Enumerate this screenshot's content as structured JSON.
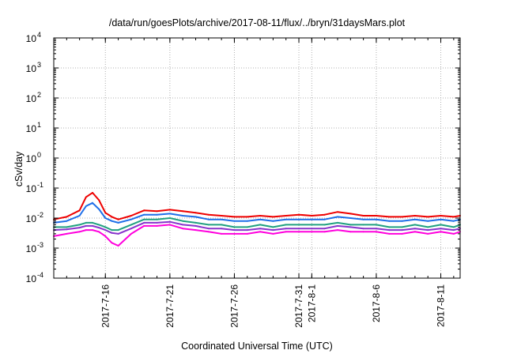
{
  "chart_data": {
    "type": "line",
    "title": "/data/run/goesPlots/archive/2017-08-11/flux/../bryn/31daysMars.plot",
    "xlabel": "Coordinated Universal Time (UTC)",
    "ylabel": "cSv/day",
    "yscale": "log",
    "ylim": [
      0.0001,
      10000
    ],
    "xlim": [
      "2017-07-12",
      "2017-08-12T12:00"
    ],
    "grid": true,
    "y_ticks": [
      {
        "base": "10",
        "exp": "-4"
      },
      {
        "base": "10",
        "exp": "-3"
      },
      {
        "base": "10",
        "exp": "-2"
      },
      {
        "base": "10",
        "exp": "-1"
      },
      {
        "base": "10",
        "exp": "0"
      },
      {
        "base": "10",
        "exp": "1"
      },
      {
        "base": "10",
        "exp": "2"
      },
      {
        "base": "10",
        "exp": "3"
      },
      {
        "base": "10",
        "exp": "4"
      }
    ],
    "x_ticks": [
      {
        "date": "2017-07-16",
        "label": "2017-7-16"
      },
      {
        "date": "2017-07-21",
        "label": "2017-7-21"
      },
      {
        "date": "2017-07-26",
        "label": "2017-7-26"
      },
      {
        "date": "2017-07-31",
        "label": "2017-7-31"
      },
      {
        "date": "2017-08-01",
        "label": "2017-8-1"
      },
      {
        "date": "2017-08-06",
        "label": "2017-8-6"
      },
      {
        "date": "2017-08-11",
        "label": "2017-8-11"
      }
    ],
    "series": [
      {
        "color": "#ee0000",
        "points": [
          [
            "2017-07-12",
            0.009
          ],
          [
            "2017-07-13",
            0.011
          ],
          [
            "2017-07-14",
            0.018
          ],
          [
            "2017-07-14T12:00",
            0.05
          ],
          [
            "2017-07-15",
            0.07
          ],
          [
            "2017-07-15T12:00",
            0.04
          ],
          [
            "2017-07-16",
            0.015
          ],
          [
            "2017-07-16T12:00",
            0.011
          ],
          [
            "2017-07-17",
            0.009
          ],
          [
            "2017-07-18",
            0.012
          ],
          [
            "2017-07-19",
            0.018
          ],
          [
            "2017-07-20",
            0.017
          ],
          [
            "2017-07-21",
            0.019
          ],
          [
            "2017-07-22",
            0.017
          ],
          [
            "2017-07-23",
            0.015
          ],
          [
            "2017-07-24",
            0.013
          ],
          [
            "2017-07-25",
            0.012
          ],
          [
            "2017-07-26",
            0.011
          ],
          [
            "2017-07-27",
            0.011
          ],
          [
            "2017-07-28",
            0.012
          ],
          [
            "2017-07-29",
            0.011
          ],
          [
            "2017-07-30",
            0.012
          ],
          [
            "2017-07-31",
            0.013
          ],
          [
            "2017-08-01",
            0.012
          ],
          [
            "2017-08-02",
            0.013
          ],
          [
            "2017-08-03",
            0.016
          ],
          [
            "2017-08-04",
            0.014
          ],
          [
            "2017-08-05",
            0.012
          ],
          [
            "2017-08-06",
            0.012
          ],
          [
            "2017-08-07",
            0.011
          ],
          [
            "2017-08-08",
            0.011
          ],
          [
            "2017-08-09",
            0.012
          ],
          [
            "2017-08-10",
            0.011
          ],
          [
            "2017-08-11",
            0.012
          ],
          [
            "2017-08-12",
            0.011
          ],
          [
            "2017-08-12T12:00",
            0.012
          ]
        ]
      },
      {
        "color": "#1f6fe8",
        "points": [
          [
            "2017-07-12",
            0.007
          ],
          [
            "2017-07-13",
            0.008
          ],
          [
            "2017-07-14",
            0.012
          ],
          [
            "2017-07-14T12:00",
            0.025
          ],
          [
            "2017-07-15",
            0.032
          ],
          [
            "2017-07-15T12:00",
            0.02
          ],
          [
            "2017-07-16",
            0.01
          ],
          [
            "2017-07-16T12:00",
            0.008
          ],
          [
            "2017-07-17",
            0.007
          ],
          [
            "2017-07-18",
            0.009
          ],
          [
            "2017-07-19",
            0.013
          ],
          [
            "2017-07-20",
            0.013
          ],
          [
            "2017-07-21",
            0.014
          ],
          [
            "2017-07-22",
            0.012
          ],
          [
            "2017-07-23",
            0.011
          ],
          [
            "2017-07-24",
            0.009
          ],
          [
            "2017-07-25",
            0.009
          ],
          [
            "2017-07-26",
            0.008
          ],
          [
            "2017-07-27",
            0.008
          ],
          [
            "2017-07-28",
            0.009
          ],
          [
            "2017-07-29",
            0.008
          ],
          [
            "2017-07-30",
            0.009
          ],
          [
            "2017-07-31",
            0.009
          ],
          [
            "2017-08-01",
            0.009
          ],
          [
            "2017-08-02",
            0.009
          ],
          [
            "2017-08-03",
            0.011
          ],
          [
            "2017-08-04",
            0.01
          ],
          [
            "2017-08-05",
            0.009
          ],
          [
            "2017-08-06",
            0.009
          ],
          [
            "2017-08-07",
            0.008
          ],
          [
            "2017-08-08",
            0.008
          ],
          [
            "2017-08-09",
            0.009
          ],
          [
            "2017-08-10",
            0.008
          ],
          [
            "2017-08-11",
            0.009
          ],
          [
            "2017-08-12",
            0.008
          ],
          [
            "2017-08-12T12:00",
            0.009
          ]
        ]
      },
      {
        "color": "#20a080",
        "points": [
          [
            "2017-07-12",
            0.005
          ],
          [
            "2017-07-13",
            0.005
          ],
          [
            "2017-07-14",
            0.006
          ],
          [
            "2017-07-14T12:00",
            0.007
          ],
          [
            "2017-07-15",
            0.007
          ],
          [
            "2017-07-15T12:00",
            0.006
          ],
          [
            "2017-07-16",
            0.005
          ],
          [
            "2017-07-16T12:00",
            0.004
          ],
          [
            "2017-07-17",
            0.004
          ],
          [
            "2017-07-18",
            0.006
          ],
          [
            "2017-07-19",
            0.009
          ],
          [
            "2017-07-20",
            0.009
          ],
          [
            "2017-07-21",
            0.01
          ],
          [
            "2017-07-22",
            0.008
          ],
          [
            "2017-07-23",
            0.007
          ],
          [
            "2017-07-24",
            0.006
          ],
          [
            "2017-07-25",
            0.006
          ],
          [
            "2017-07-26",
            0.005
          ],
          [
            "2017-07-27",
            0.005
          ],
          [
            "2017-07-28",
            0.006
          ],
          [
            "2017-07-29",
            0.005
          ],
          [
            "2017-07-30",
            0.006
          ],
          [
            "2017-07-31",
            0.006
          ],
          [
            "2017-08-01",
            0.006
          ],
          [
            "2017-08-02",
            0.006
          ],
          [
            "2017-08-03",
            0.007
          ],
          [
            "2017-08-04",
            0.006
          ],
          [
            "2017-08-05",
            0.006
          ],
          [
            "2017-08-06",
            0.006
          ],
          [
            "2017-08-07",
            0.005
          ],
          [
            "2017-08-08",
            0.005
          ],
          [
            "2017-08-09",
            0.006
          ],
          [
            "2017-08-10",
            0.005
          ],
          [
            "2017-08-11",
            0.006
          ],
          [
            "2017-08-12",
            0.005
          ],
          [
            "2017-08-12T12:00",
            0.006
          ]
        ]
      },
      {
        "color": "#8833cc",
        "points": [
          [
            "2017-07-12",
            0.004
          ],
          [
            "2017-07-13",
            0.0042
          ],
          [
            "2017-07-14",
            0.0048
          ],
          [
            "2017-07-14T12:00",
            0.0055
          ],
          [
            "2017-07-15",
            0.0055
          ],
          [
            "2017-07-15T12:00",
            0.0048
          ],
          [
            "2017-07-16",
            0.004
          ],
          [
            "2017-07-16T12:00",
            0.0032
          ],
          [
            "2017-07-17",
            0.003
          ],
          [
            "2017-07-18",
            0.0045
          ],
          [
            "2017-07-19",
            0.007
          ],
          [
            "2017-07-20",
            0.007
          ],
          [
            "2017-07-21",
            0.0075
          ],
          [
            "2017-07-22",
            0.006
          ],
          [
            "2017-07-23",
            0.0055
          ],
          [
            "2017-07-24",
            0.0045
          ],
          [
            "2017-07-25",
            0.0045
          ],
          [
            "2017-07-26",
            0.004
          ],
          [
            "2017-07-27",
            0.004
          ],
          [
            "2017-07-28",
            0.0045
          ],
          [
            "2017-07-29",
            0.004
          ],
          [
            "2017-07-30",
            0.0045
          ],
          [
            "2017-07-31",
            0.0045
          ],
          [
            "2017-08-01",
            0.0045
          ],
          [
            "2017-08-02",
            0.0045
          ],
          [
            "2017-08-03",
            0.0055
          ],
          [
            "2017-08-04",
            0.005
          ],
          [
            "2017-08-05",
            0.0045
          ],
          [
            "2017-08-06",
            0.0045
          ],
          [
            "2017-08-07",
            0.004
          ],
          [
            "2017-08-08",
            0.004
          ],
          [
            "2017-08-09",
            0.0045
          ],
          [
            "2017-08-10",
            0.004
          ],
          [
            "2017-08-11",
            0.0045
          ],
          [
            "2017-08-12",
            0.004
          ],
          [
            "2017-08-12T12:00",
            0.0045
          ]
        ]
      },
      {
        "color": "#ff00dd",
        "points": [
          [
            "2017-07-12",
            0.0025
          ],
          [
            "2017-07-13",
            0.003
          ],
          [
            "2017-07-14",
            0.0035
          ],
          [
            "2017-07-14T12:00",
            0.004
          ],
          [
            "2017-07-15",
            0.004
          ],
          [
            "2017-07-15T12:00",
            0.0035
          ],
          [
            "2017-07-16",
            0.0025
          ],
          [
            "2017-07-16T12:00",
            0.0015
          ],
          [
            "2017-07-17",
            0.0012
          ],
          [
            "2017-07-18",
            0.003
          ],
          [
            "2017-07-19",
            0.0055
          ],
          [
            "2017-07-20",
            0.0055
          ],
          [
            "2017-07-21",
            0.006
          ],
          [
            "2017-07-22",
            0.0045
          ],
          [
            "2017-07-23",
            0.004
          ],
          [
            "2017-07-24",
            0.0035
          ],
          [
            "2017-07-25",
            0.003
          ],
          [
            "2017-07-26",
            0.003
          ],
          [
            "2017-07-27",
            0.003
          ],
          [
            "2017-07-28",
            0.0035
          ],
          [
            "2017-07-29",
            0.003
          ],
          [
            "2017-07-30",
            0.0035
          ],
          [
            "2017-07-31",
            0.0035
          ],
          [
            "2017-08-01",
            0.0035
          ],
          [
            "2017-08-02",
            0.0035
          ],
          [
            "2017-08-03",
            0.004
          ],
          [
            "2017-08-04",
            0.0035
          ],
          [
            "2017-08-05",
            0.0035
          ],
          [
            "2017-08-06",
            0.0035
          ],
          [
            "2017-08-07",
            0.003
          ],
          [
            "2017-08-08",
            0.003
          ],
          [
            "2017-08-09",
            0.0035
          ],
          [
            "2017-08-10",
            0.003
          ],
          [
            "2017-08-11",
            0.0035
          ],
          [
            "2017-08-12",
            0.003
          ],
          [
            "2017-08-12T12:00",
            0.0035
          ]
        ]
      }
    ]
  }
}
